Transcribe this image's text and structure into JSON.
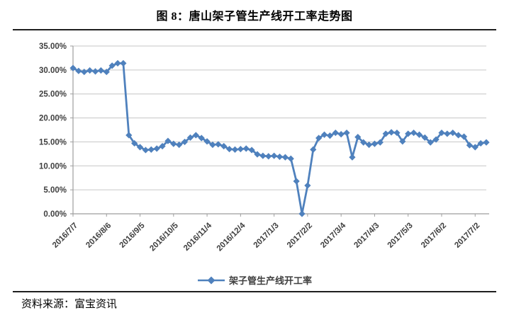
{
  "title": "图 8：唐山架子管生产线开工率走势图",
  "legend": {
    "label": "架子管生产线开工率"
  },
  "footer": {
    "source_label": "资料来源：富宝资讯"
  },
  "colors": {
    "line": "#4F81BD",
    "marker": "#4F81BD",
    "grid": "#C6C6C6",
    "axis": "#9E9E9E",
    "tick_text": "#3F3F3F",
    "rule": "#1F1F1F"
  },
  "chart_data": {
    "type": "line",
    "title": "图 8：唐山架子管生产线开工率走势图",
    "series_name": "架子管生产线开工率",
    "unit": "percent",
    "marker": "diamond",
    "grid": "horizontal",
    "legend_position": "bottom",
    "ylim": [
      0,
      35
    ],
    "y_tick_step": 5,
    "y_tick_labels": [
      "35.00%",
      "30.00%",
      "25.00%",
      "20.00%",
      "15.00%",
      "10.00%",
      "5.00%",
      "0.00%"
    ],
    "x_tick_labels": [
      "2016/7/7",
      "2016/8/6",
      "2016/9/5",
      "2016/10/5",
      "2016/11/4",
      "2016/12/4",
      "2017/1/3",
      "2017/2/2",
      "2017/3/4",
      "2017/4/3",
      "2017/5/3",
      "2017/6/2",
      "2017/7/2"
    ],
    "points_per_tick": 6,
    "point_interval_days": 5,
    "values": [
      30.4,
      29.8,
      29.6,
      29.9,
      29.7,
      29.9,
      29.6,
      30.9,
      31.4,
      31.4,
      16.4,
      14.7,
      13.9,
      13.3,
      13.4,
      13.6,
      14.1,
      15.2,
      14.6,
      14.4,
      15.0,
      15.9,
      16.4,
      15.8,
      15.1,
      14.4,
      14.5,
      14.1,
      13.5,
      13.4,
      13.5,
      13.6,
      13.3,
      12.4,
      12.1,
      12.0,
      12.1,
      11.9,
      11.8,
      11.5,
      6.8,
      0.0,
      5.9,
      13.4,
      15.8,
      16.5,
      16.3,
      16.9,
      16.6,
      16.9,
      11.8,
      16.0,
      14.9,
      14.4,
      14.6,
      14.9,
      16.7,
      17.0,
      16.9,
      15.1,
      16.7,
      16.9,
      16.5,
      15.9,
      14.9,
      15.5,
      16.9,
      16.7,
      16.9,
      16.4,
      16.1,
      14.3,
      13.9,
      14.7,
      14.9
    ]
  }
}
